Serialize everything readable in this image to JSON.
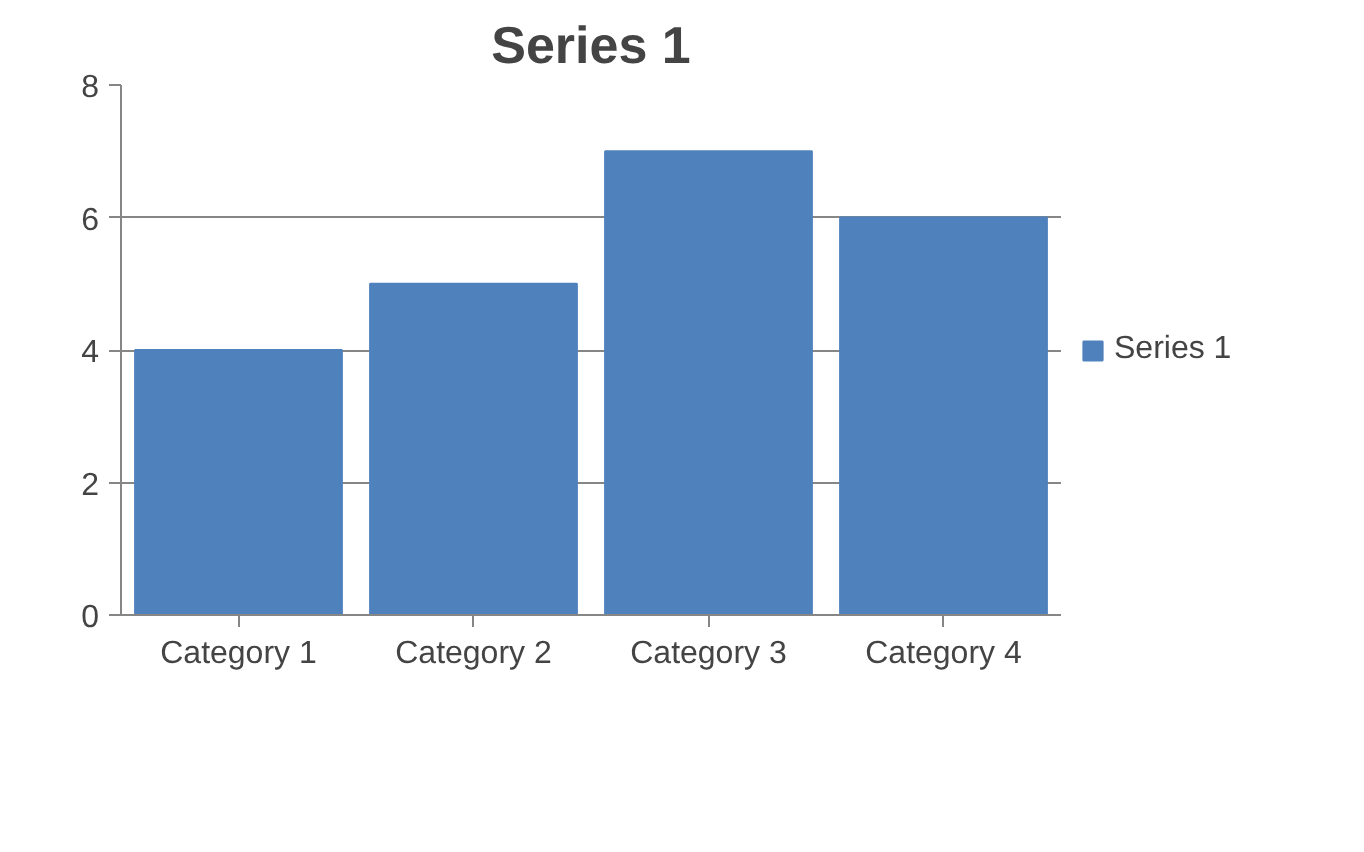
{
  "chart_data": {
    "type": "bar",
    "title": "Series 1",
    "categories": [
      "Category 1",
      "Category 2",
      "Category 3",
      "Category 4"
    ],
    "series": [
      {
        "name": "Series 1",
        "color": "#4f81bd",
        "values": [
          4,
          5,
          7,
          6
        ]
      }
    ],
    "ylim": [
      0,
      8
    ],
    "yticks": [
      0,
      2,
      4,
      6,
      8
    ],
    "grid": "y",
    "legend": "right"
  }
}
